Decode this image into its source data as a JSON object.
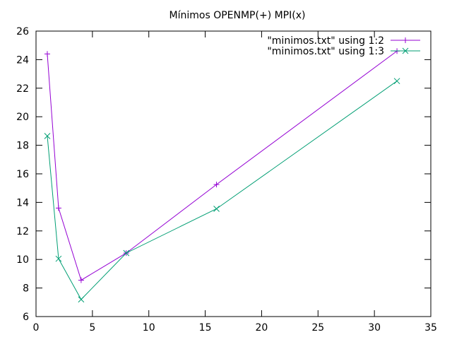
{
  "chart_data": {
    "type": "line",
    "title": "Mínimos OPENMP(+)  MPI(x)",
    "xlabel": "",
    "ylabel": "",
    "xlim": [
      0,
      35
    ],
    "ylim": [
      6,
      26
    ],
    "xticks": [
      0,
      5,
      10,
      15,
      20,
      25,
      30,
      35
    ],
    "yticks": [
      6,
      8,
      10,
      12,
      14,
      16,
      18,
      20,
      22,
      24,
      26
    ],
    "grid": false,
    "legend_position": "top-right",
    "series": [
      {
        "name": "\"minimos.txt\" using 1:2",
        "marker": "plus",
        "color": "#9400d3",
        "x": [
          1,
          2,
          4,
          8,
          16,
          32
        ],
        "y": [
          24.4,
          13.6,
          8.55,
          10.45,
          15.25,
          24.6
        ]
      },
      {
        "name": "\"minimos.txt\" using 1:3",
        "marker": "cross",
        "color": "#009e73",
        "x": [
          1,
          2,
          4,
          8,
          16,
          32
        ],
        "y": [
          18.65,
          10.05,
          7.2,
          10.45,
          13.55,
          22.5
        ]
      }
    ]
  }
}
